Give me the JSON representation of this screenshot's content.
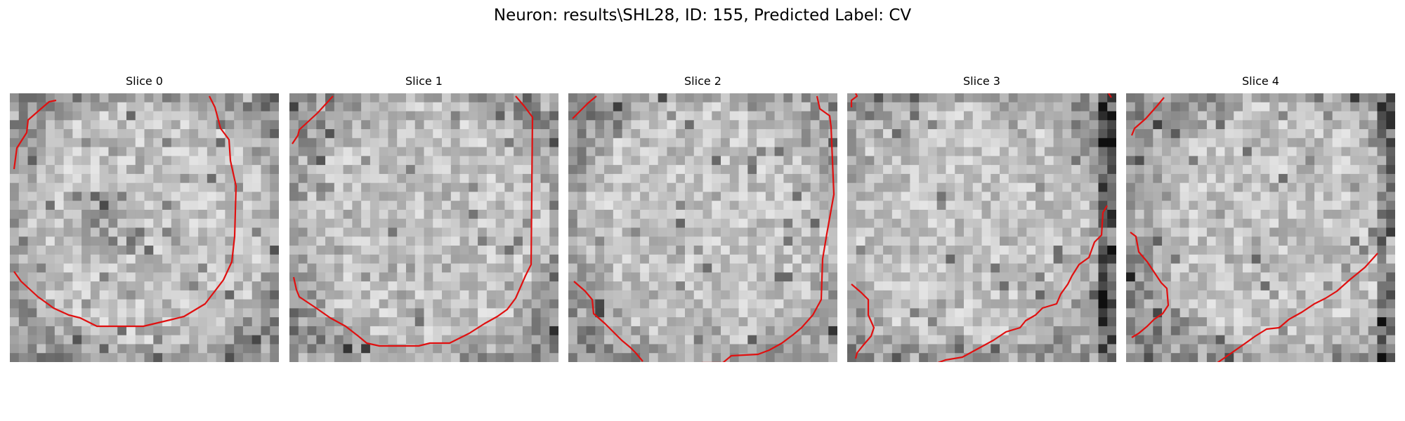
{
  "figure": {
    "title": "Neuron: results\\SHL28, ID: 155, Predicted Label: CV"
  },
  "colors": {
    "contour": "#e01010",
    "background": "#ffffff",
    "colormap": "grayscale"
  },
  "slices": [
    {
      "label": "Slice 0",
      "image": "grayscale-em-microscopy-patch-with-red-contour",
      "seed": 11
    },
    {
      "label": "Slice 1",
      "image": "grayscale-em-microscopy-patch-with-red-contour",
      "seed": 23
    },
    {
      "label": "Slice 2",
      "image": "grayscale-em-microscopy-patch-with-red-contour",
      "seed": 37
    },
    {
      "label": "Slice 3",
      "image": "grayscale-em-microscopy-patch-with-red-contour",
      "seed": 53
    },
    {
      "label": "Slice 4",
      "image": "grayscale-em-microscopy-patch-with-red-contour",
      "seed": 71
    }
  ]
}
